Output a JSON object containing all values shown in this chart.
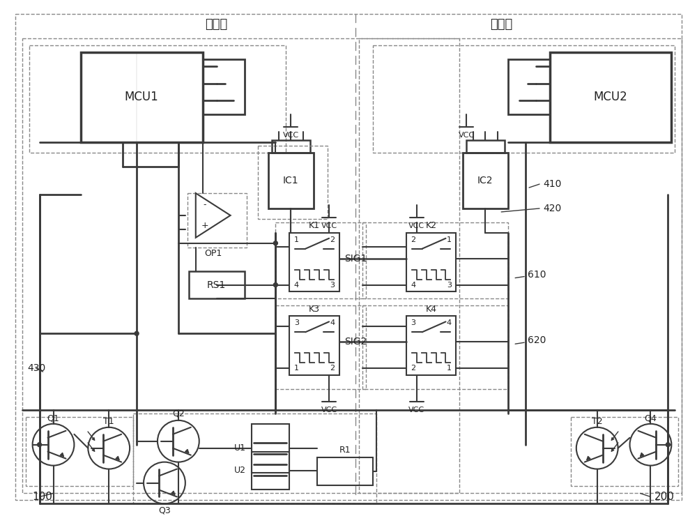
{
  "bg_color": "#ffffff",
  "lc": "#3a3a3a",
  "dc": "#888888",
  "title_wai": "外机侧",
  "title_nei": "内机侧",
  "MCU1": "MCU1",
  "MCU2": "MCU2",
  "IC1": "IC1",
  "IC2": "IC2",
  "OP1": "OP1",
  "RS1": "RS1",
  "K1": "K1",
  "K2": "K2",
  "K3": "K3",
  "K4": "K4",
  "SIG1": "SIG1",
  "SIG2": "SIG2",
  "Q1": "Q1",
  "Q2": "Q2",
  "Q3": "Q3",
  "Q4": "Q4",
  "T1": "T1",
  "T2": "T2",
  "U1": "U1",
  "U2": "U2",
  "R1": "R1",
  "n100": "100",
  "n200": "200",
  "n410": "410",
  "n420": "420",
  "n430": "430",
  "n610": "610",
  "n620": "620"
}
